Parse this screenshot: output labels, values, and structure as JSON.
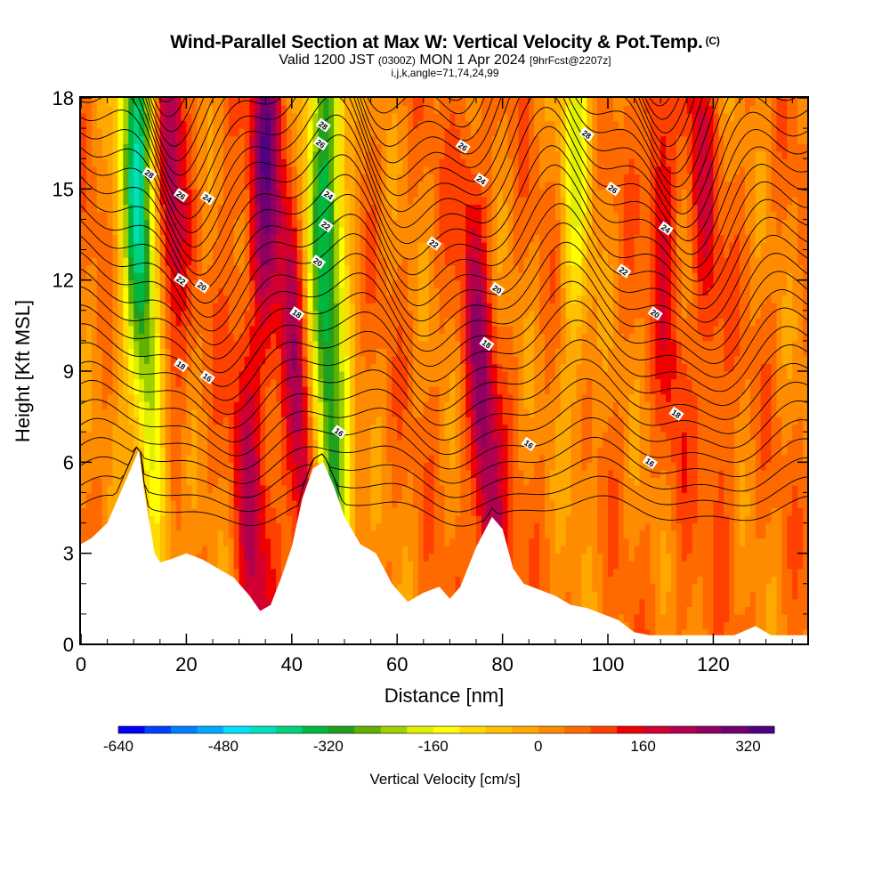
{
  "header": {
    "title": "Wind-Parallel Section at Max W: Vertical Velocity & Pot.Temp.",
    "copyright": "(C)",
    "valid_prefix": "Valid 1200 JST",
    "valid_zulu": "(0300Z)",
    "valid_date": "MON 1 Apr 2024",
    "forecast": "[9hrFcst@2207z]",
    "indices": "i,j,k,angle=71,74,24,99"
  },
  "chart_data": {
    "type": "heatmap",
    "xlabel": "Distance [nm]",
    "ylabel": "Height [Kft MSL]",
    "xlim": [
      0,
      138
    ],
    "ylim": [
      0,
      18
    ],
    "x_ticks": [
      0,
      20,
      40,
      60,
      80,
      100,
      120
    ],
    "y_ticks": [
      0,
      3,
      6,
      9,
      12,
      15,
      18
    ],
    "colorbar": {
      "label": "Vertical Velocity [cm/s]",
      "range": [
        -640,
        360
      ],
      "tick_values": [
        -640,
        -480,
        -320,
        -160,
        0,
        160,
        320
      ],
      "tick_labels": [
        "-640",
        "-480",
        "-320",
        "-160",
        "0",
        "160",
        "320"
      ],
      "colors": [
        "#0000ff",
        "#0040ff",
        "#0080ff",
        "#00aaff",
        "#00e0ff",
        "#00e0c0",
        "#00d080",
        "#00b840",
        "#20a020",
        "#60b000",
        "#a0d000",
        "#e0f000",
        "#ffff00",
        "#ffdc00",
        "#ffc000",
        "#ffa800",
        "#ff8c00",
        "#ff6a00",
        "#ff4000",
        "#f00000",
        "#d00030",
        "#b00050",
        "#900060",
        "#700070",
        "#500080"
      ]
    },
    "terrain": {
      "x": [
        0,
        2,
        5,
        7,
        9,
        11,
        12,
        13,
        14,
        15,
        17,
        20,
        23,
        26,
        29,
        32,
        34,
        36,
        38,
        40,
        42,
        44,
        46,
        48,
        50,
        53,
        56,
        59,
        62,
        65,
        68,
        70,
        72,
        75,
        78,
        80,
        82,
        84,
        87,
        90,
        93,
        96,
        99,
        102,
        105,
        108,
        112,
        116,
        120,
        124,
        128,
        131,
        134,
        138
      ],
      "z": [
        3.3,
        3.5,
        4.0,
        4.8,
        5.6,
        6.4,
        5.0,
        4.0,
        3.0,
        2.7,
        2.8,
        3.0,
        2.8,
        2.5,
        2.2,
        1.6,
        1.1,
        1.3,
        2.2,
        3.2,
        4.8,
        5.8,
        6.0,
        5.2,
        4.2,
        3.3,
        3.0,
        2.0,
        1.4,
        1.7,
        1.9,
        1.5,
        1.9,
        3.2,
        4.2,
        3.8,
        2.5,
        2.0,
        1.8,
        1.6,
        1.3,
        1.2,
        1.0,
        0.8,
        0.4,
        0.3,
        0.3,
        0.3,
        0.3,
        0.3,
        0.6,
        0.3,
        0.3,
        0.3
      ]
    },
    "updraft_bands": [
      {
        "x": 17,
        "y": 18,
        "w": 200
      },
      {
        "x": 13,
        "y": 2,
        "w": 200
      },
      {
        "x": 35,
        "y": 18,
        "w": 240
      },
      {
        "x": 33,
        "y": 2,
        "w": 150
      },
      {
        "x": 42,
        "y": 6,
        "w": 200
      },
      {
        "x": 77,
        "y": 6,
        "w": 220
      },
      {
        "x": 110,
        "y": 15,
        "w": 120
      },
      {
        "x": 118,
        "y": 15,
        "w": 110
      }
    ],
    "downdraft_bands": [
      {
        "x": 11,
        "y": 18,
        "w": -350
      },
      {
        "x": 13,
        "y": 6,
        "w": -300
      },
      {
        "x": 47,
        "y": 18,
        "w": -320
      },
      {
        "x": 48,
        "y": 5,
        "w": -300
      },
      {
        "x": 94,
        "y": 18,
        "w": -200
      }
    ],
    "isentrope_labels": [
      {
        "text": "28",
        "x": 13,
        "y": 15.5
      },
      {
        "text": "26",
        "x": 19,
        "y": 14.8
      },
      {
        "text": "24",
        "x": 24,
        "y": 14.7
      },
      {
        "text": "22",
        "x": 19,
        "y": 12
      },
      {
        "text": "20",
        "x": 23,
        "y": 11.8
      },
      {
        "text": "18",
        "x": 19,
        "y": 9.2
      },
      {
        "text": "16",
        "x": 24,
        "y": 8.8
      },
      {
        "text": "28",
        "x": 46,
        "y": 17.1
      },
      {
        "text": "26",
        "x": 45.5,
        "y": 16.5
      },
      {
        "text": "24",
        "x": 47,
        "y": 14.8
      },
      {
        "text": "22",
        "x": 46.5,
        "y": 13.8
      },
      {
        "text": "20",
        "x": 45,
        "y": 12.6
      },
      {
        "text": "18",
        "x": 41,
        "y": 10.9
      },
      {
        "text": "16",
        "x": 49,
        "y": 7.0
      },
      {
        "text": "26",
        "x": 72.5,
        "y": 16.4
      },
      {
        "text": "24",
        "x": 76,
        "y": 15.3
      },
      {
        "text": "22",
        "x": 67,
        "y": 13.2
      },
      {
        "text": "20",
        "x": 79,
        "y": 11.7
      },
      {
        "text": "18",
        "x": 77,
        "y": 9.9
      },
      {
        "text": "16",
        "x": 85,
        "y": 6.6
      },
      {
        "text": "28",
        "x": 96,
        "y": 16.8
      },
      {
        "text": "26",
        "x": 101,
        "y": 15.0
      },
      {
        "text": "24",
        "x": 111,
        "y": 13.7
      },
      {
        "text": "22",
        "x": 103,
        "y": 12.3
      },
      {
        "text": "20",
        "x": 109,
        "y": 10.9
      },
      {
        "text": "18",
        "x": 113,
        "y": 7.6
      },
      {
        "text": "16",
        "x": 108,
        "y": 6.0
      }
    ]
  }
}
